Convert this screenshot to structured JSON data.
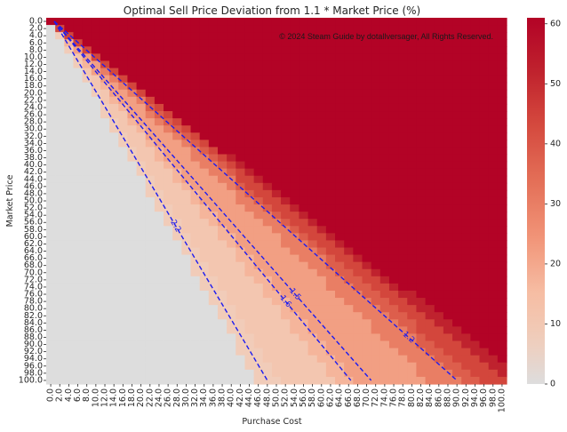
{
  "chart_data": {
    "type": "heatmap",
    "title": "Optimal Sell Price Deviation from 1.1 * Market Price (%)",
    "xlabel": "Purchase Cost",
    "ylabel": "Market Price",
    "watermark": "© 2024 Steam Guide by dotallversager, All Rights Reserved.",
    "x_ticks": [
      "0.0",
      "2.0",
      "4.0",
      "6.0",
      "8.0",
      "10.0",
      "12.0",
      "14.0",
      "16.0",
      "18.0",
      "20.0",
      "22.0",
      "24.0",
      "26.0",
      "28.0",
      "30.0",
      "32.0",
      "34.0",
      "36.0",
      "38.0",
      "40.0",
      "42.0",
      "44.0",
      "46.0",
      "48.0",
      "50.0",
      "52.0",
      "54.0",
      "56.0",
      "58.0",
      "60.0",
      "62.0",
      "64.0",
      "66.0",
      "68.0",
      "70.0",
      "72.0",
      "74.0",
      "76.0",
      "78.0",
      "80.0",
      "82.0",
      "84.0",
      "86.0",
      "88.0",
      "90.0",
      "92.0",
      "94.0",
      "96.0",
      "98.0",
      "100.0"
    ],
    "y_ticks": [
      "0.0",
      "2.0",
      "4.0",
      "6.0",
      "8.0",
      "10.0",
      "12.0",
      "14.0",
      "16.0",
      "18.0",
      "20.0",
      "22.0",
      "24.0",
      "26.0",
      "28.0",
      "30.0",
      "32.0",
      "34.0",
      "36.0",
      "38.0",
      "40.0",
      "42.0",
      "44.0",
      "46.0",
      "48.0",
      "50.0",
      "52.0",
      "54.0",
      "56.0",
      "58.0",
      "60.0",
      "62.0",
      "64.0",
      "66.0",
      "68.0",
      "70.0",
      "72.0",
      "74.0",
      "76.0",
      "78.0",
      "80.0",
      "82.0",
      "84.0",
      "86.0",
      "88.0",
      "90.0",
      "92.0",
      "94.0",
      "96.0",
      "98.0",
      "100.0"
    ],
    "x_range": [
      0,
      100
    ],
    "y_range": [
      0,
      100
    ],
    "color_range": [
      0,
      61
    ],
    "colorbar_ticks": [
      "0",
      "10",
      "20",
      "30",
      "40",
      "50",
      "60"
    ],
    "colormap": "coolwarm",
    "zero_region_color": "#dddddd",
    "contours": [
      {
        "label": "2.2",
        "points": [
          [
            0,
            0
          ],
          [
            48,
            100
          ]
        ],
        "color": "#1c1cf0"
      },
      {
        "label": "1.6",
        "points": [
          [
            0,
            0
          ],
          [
            66.5,
            100
          ]
        ],
        "color": "#1c1cf0"
      },
      {
        "label": "1.5",
        "points": [
          [
            0,
            0
          ],
          [
            71,
            100
          ]
        ],
        "color": "#1c1cf0"
      },
      {
        "label": "1.2",
        "points": [
          [
            0,
            0
          ],
          [
            90,
            100
          ]
        ],
        "color": "#1c1cf0"
      }
    ],
    "grid": false,
    "legend": "colorbar-right"
  }
}
